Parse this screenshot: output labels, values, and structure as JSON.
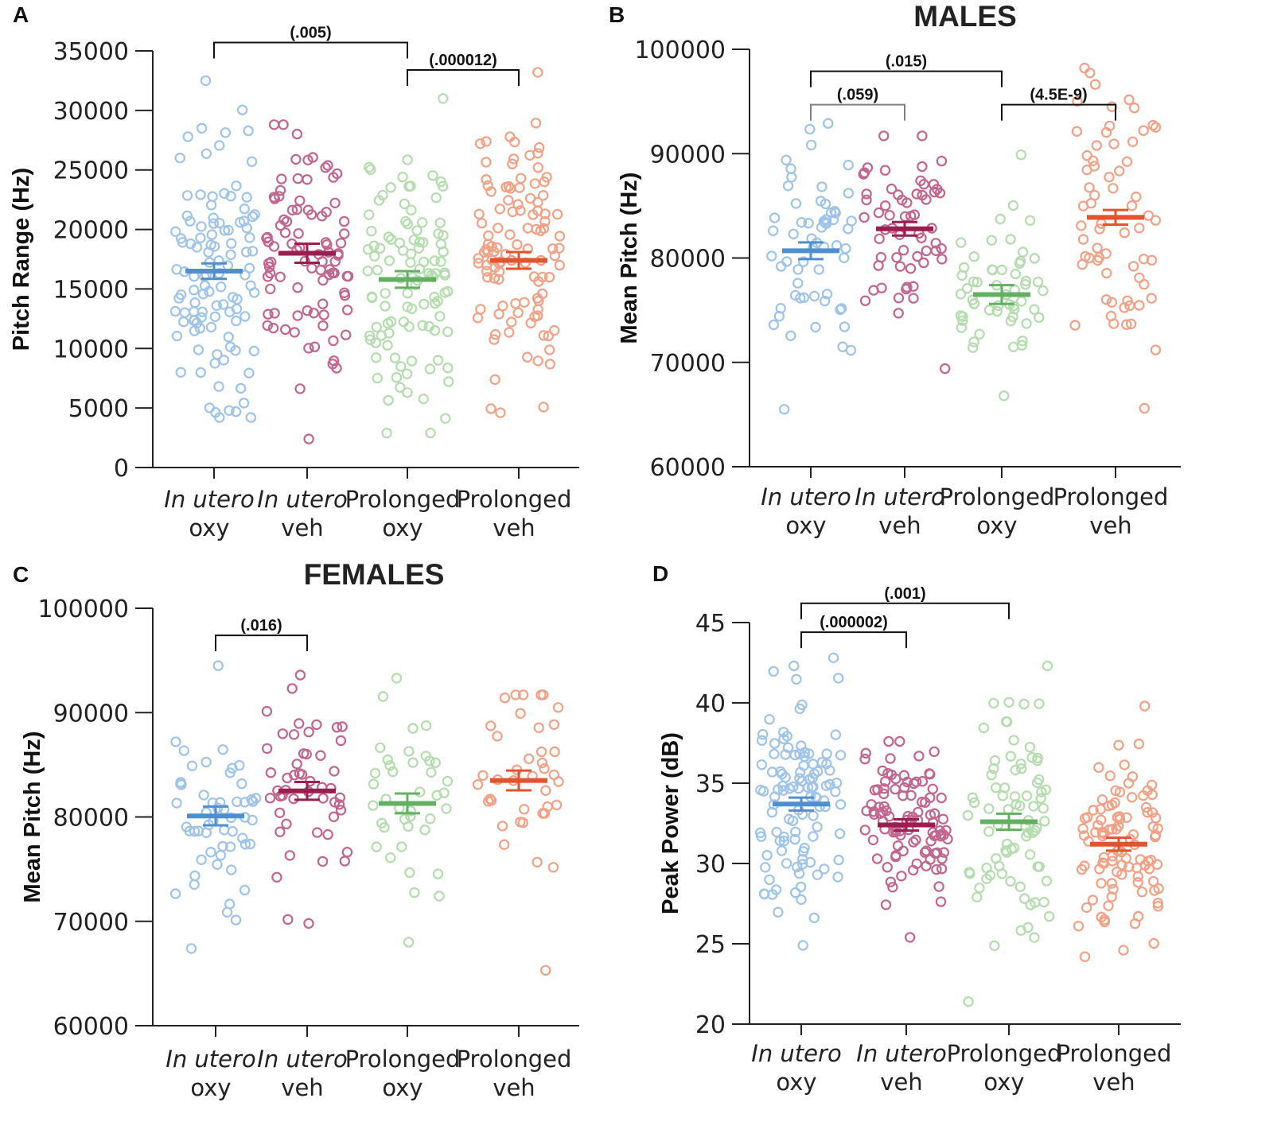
{
  "colors": {
    "in_utero_oxy": "#9fc4e8",
    "in_utero_oxy_mean": "#4f8fd0",
    "in_utero_veh": "#c0668f",
    "in_utero_veh_mean": "#9c1e4e",
    "prolonged_oxy": "#b4dcae",
    "prolonged_oxy_mean": "#63b062",
    "prolonged_veh": "#f0a286",
    "prolonged_veh_mean": "#e2542d",
    "bracket": "#111111",
    "bracket_gray": "#808080"
  },
  "chart_data": [
    {
      "panel": "A",
      "title": "",
      "type": "scatter",
      "ylabel": "Pitch Range (Hz)",
      "ylim": [
        0,
        35000
      ],
      "yticks": [
        "0",
        "5000",
        "10000",
        "15000",
        "20000",
        "25000",
        "30000",
        "35000"
      ],
      "ytick_values": [
        0,
        5000,
        10000,
        15000,
        20000,
        25000,
        30000,
        35000
      ],
      "categories": [
        {
          "line1": "In utero",
          "line2": "oxy",
          "italic": true
        },
        {
          "line1": "In utero",
          "line2": "veh",
          "italic": true
        },
        {
          "line1": "Prolonged",
          "line2": "oxy",
          "italic": false
        },
        {
          "line1": "Prolonged",
          "line2": "veh",
          "italic": false
        }
      ],
      "series": [
        {
          "name": "In utero oxy",
          "color_key": "in_utero_oxy",
          "mean": 16500,
          "sem": 650,
          "n": 110,
          "min": 4200,
          "max": 32500
        },
        {
          "name": "In utero veh",
          "color_key": "in_utero_veh",
          "mean": 18000,
          "sem": 800,
          "n": 90,
          "min": 2400,
          "max": 28800
        },
        {
          "name": "Prolonged oxy",
          "color_key": "prolonged_oxy",
          "mean": 15800,
          "sem": 700,
          "n": 105,
          "min": 2900,
          "max": 31000
        },
        {
          "name": "Prolonged veh",
          "color_key": "prolonged_veh",
          "mean": 17400,
          "sem": 700,
          "n": 110,
          "min": 4600,
          "max": 33200
        }
      ],
      "comparisons": [
        {
          "from": 0,
          "to": 2,
          "label": "(.005)",
          "y": 35700,
          "gray": false
        },
        {
          "from": 2,
          "to": 3,
          "label": "(.000012)",
          "y": 33400,
          "gray": false
        }
      ]
    },
    {
      "panel": "B",
      "title": "MALES",
      "type": "scatter",
      "ylabel": "Mean Pitch (Hz)",
      "ylim": [
        60000,
        100000
      ],
      "yticks": [
        "60000",
        "70000",
        "80000",
        "90000",
        "100000"
      ],
      "ytick_values": [
        60000,
        70000,
        80000,
        90000,
        100000
      ],
      "categories": [
        {
          "line1": "In utero",
          "line2": "oxy",
          "italic": true
        },
        {
          "line1": "In utero",
          "line2": "veh",
          "italic": true
        },
        {
          "line1": "Prolonged",
          "line2": "oxy",
          "italic": false
        },
        {
          "line1": "Prolonged",
          "line2": "veh",
          "italic": false
        }
      ],
      "series": [
        {
          "name": "In utero oxy",
          "color_key": "in_utero_oxy",
          "mean": 80700,
          "sem": 800,
          "n": 60,
          "min": 65500,
          "max": 92900
        },
        {
          "name": "In utero veh",
          "color_key": "in_utero_veh",
          "mean": 82800,
          "sem": 650,
          "n": 60,
          "min": 69400,
          "max": 91700
        },
        {
          "name": "Prolonged oxy",
          "color_key": "prolonged_oxy",
          "mean": 76500,
          "sem": 900,
          "n": 55,
          "min": 66800,
          "max": 89900
        },
        {
          "name": "Prolonged veh",
          "color_key": "prolonged_veh",
          "mean": 83900,
          "sem": 700,
          "n": 65,
          "min": 65600,
          "max": 98200
        }
      ],
      "comparisons": [
        {
          "from": 0,
          "to": 2,
          "label": "(.015)",
          "y": 97900,
          "gray": false
        },
        {
          "from": 0,
          "to": 1,
          "label": "(.059)",
          "y": 94700,
          "gray": true
        },
        {
          "from": 2,
          "to": 3,
          "label": "(4.5E-9)",
          "y": 94700,
          "gray": false
        }
      ]
    },
    {
      "panel": "C",
      "title": "FEMALES",
      "type": "scatter",
      "ylabel": "Mean Pitch (Hz)",
      "ylim": [
        60000,
        100000
      ],
      "yticks": [
        "60000",
        "70000",
        "80000",
        "90000",
        "100000"
      ],
      "ytick_values": [
        60000,
        70000,
        80000,
        90000,
        100000
      ],
      "categories": [
        {
          "line1": "In utero",
          "line2": "oxy",
          "italic": true
        },
        {
          "line1": "In utero",
          "line2": "veh",
          "italic": true
        },
        {
          "line1": "Prolonged",
          "line2": "oxy",
          "italic": false
        },
        {
          "line1": "Prolonged",
          "line2": "veh",
          "italic": false
        }
      ],
      "series": [
        {
          "name": "In utero oxy",
          "color_key": "in_utero_oxy",
          "mean": 80100,
          "sem": 900,
          "n": 55,
          "min": 67400,
          "max": 94500
        },
        {
          "name": "In utero veh",
          "color_key": "in_utero_veh",
          "mean": 82500,
          "sem": 850,
          "n": 50,
          "min": 69800,
          "max": 93600
        },
        {
          "name": "Prolonged oxy",
          "color_key": "prolonged_oxy",
          "mean": 81300,
          "sem": 950,
          "n": 40,
          "min": 68000,
          "max": 93300
        },
        {
          "name": "Prolonged veh",
          "color_key": "prolonged_veh",
          "mean": 83500,
          "sem": 950,
          "n": 40,
          "min": 65300,
          "max": 91700
        }
      ],
      "comparisons": [
        {
          "from": 0,
          "to": 1,
          "label": "(.016)",
          "y": 97400,
          "gray": false
        }
      ]
    },
    {
      "panel": "D",
      "title": "",
      "type": "scatter",
      "ylabel": "Peak Power (dB)",
      "ylim": [
        20,
        45
      ],
      "yticks": [
        "20",
        "25",
        "30",
        "35",
        "40",
        "45"
      ],
      "ytick_values": [
        20,
        25,
        30,
        35,
        40,
        45
      ],
      "categories": [
        {
          "line1": "In utero",
          "line2": "oxy",
          "italic": true
        },
        {
          "line1": "In utero",
          "line2": "veh",
          "italic": true
        },
        {
          "line1": "Prolonged",
          "line2": "oxy",
          "italic": false
        },
        {
          "line1": "Prolonged",
          "line2": "veh",
          "italic": false
        }
      ],
      "series": [
        {
          "name": "In utero oxy",
          "color_key": "in_utero_oxy",
          "mean": 33.7,
          "sem": 0.4,
          "n": 110,
          "min": 24.9,
          "max": 42.8
        },
        {
          "name": "In utero veh",
          "color_key": "in_utero_veh",
          "mean": 32.4,
          "sem": 0.35,
          "n": 100,
          "min": 25.4,
          "max": 37.6
        },
        {
          "name": "Prolonged oxy",
          "color_key": "prolonged_oxy",
          "mean": 32.6,
          "sem": 0.5,
          "n": 80,
          "min": 21.4,
          "max": 42.3
        },
        {
          "name": "Prolonged veh",
          "color_key": "prolonged_veh",
          "mean": 31.2,
          "sem": 0.4,
          "n": 100,
          "min": 24.2,
          "max": 39.8
        }
      ],
      "comparisons": [
        {
          "from": 0,
          "to": 2,
          "label": "(.001)",
          "y": 46.2,
          "gray": false
        },
        {
          "from": 0,
          "to": 1,
          "label": "(.000002)",
          "y": 44.4,
          "gray": false
        }
      ]
    }
  ]
}
